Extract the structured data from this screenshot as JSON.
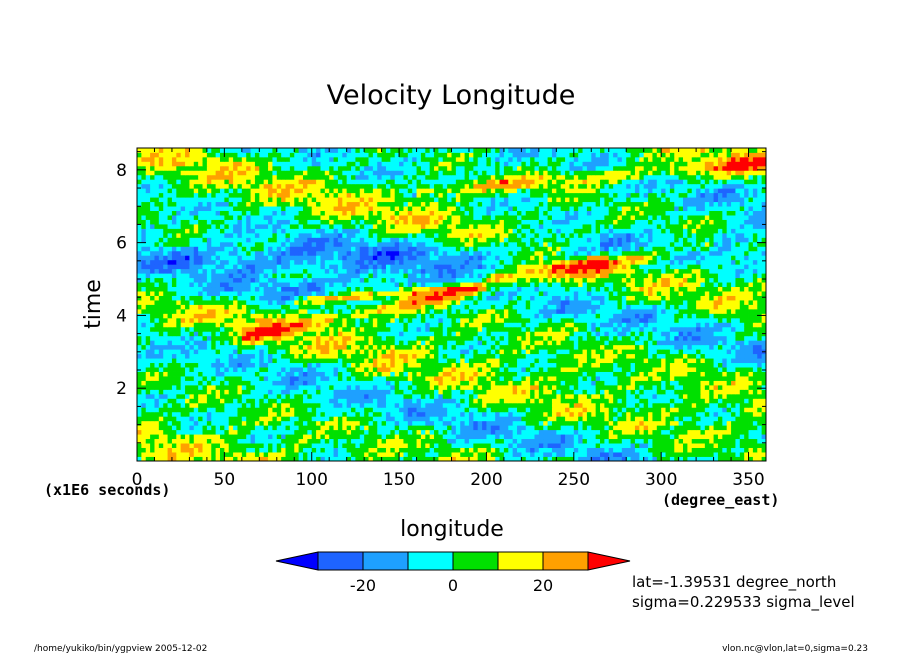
{
  "chart_data": {
    "type": "heatmap",
    "title": "Velocity Longitude",
    "xlabel": "longitude",
    "xunits": "(degree_east)",
    "ylabel": "time",
    "yunits": "(x1E6 seconds)",
    "xlim": [
      0,
      360
    ],
    "ylim": [
      0,
      8.6
    ],
    "x_ticks": [
      0,
      50,
      100,
      150,
      200,
      250,
      300,
      350
    ],
    "y_ticks": [
      2,
      4,
      6,
      8
    ],
    "colorbar": {
      "levels": [
        -30,
        -20,
        -10,
        0,
        10,
        20,
        30
      ],
      "tick_labels": [
        "-20",
        "0",
        "20"
      ],
      "colors": [
        "#0000ff",
        "#1e64ff",
        "#1ea0ff",
        "#00ffff",
        "#00e000",
        "#ffff00",
        "#ffa000",
        "#ff0000"
      ]
    },
    "annotations": [
      "lat=-1.39531 degree_north",
      "sigma=0.229533 sigma_level"
    ],
    "footer_left": "/home/yukiko/bin/ygpview  2005-12-02",
    "footer_right": "vlon.nc@vlon,lat=0,sigma=0.23",
    "ny": 70,
    "nx": 144,
    "features": [
      {
        "lon0": 60,
        "lon1": 330,
        "t0": 3.4,
        "t1": 6.0,
        "value": 20,
        "width": 0.18
      },
      {
        "lon0": 90,
        "lon1": 200,
        "t0": 4.4,
        "t1": 4.8,
        "value": 24,
        "width": 0.12
      },
      {
        "lon0": 200,
        "lon1": 270,
        "t0": 5.0,
        "t1": 5.6,
        "value": 22,
        "width": 0.15
      },
      {
        "lon0": 160,
        "lon1": 360,
        "t0": 7.4,
        "t1": 8.2,
        "value": 18,
        "width": 0.2
      },
      {
        "lon0": 0,
        "lon1": 360,
        "t0": 5.5,
        "t1": 5.9,
        "value": -14,
        "width": 0.5
      },
      {
        "lon0": 0,
        "lon1": 150,
        "t0": 4.6,
        "t1": 4.8,
        "value": -12,
        "width": 0.35
      }
    ]
  }
}
